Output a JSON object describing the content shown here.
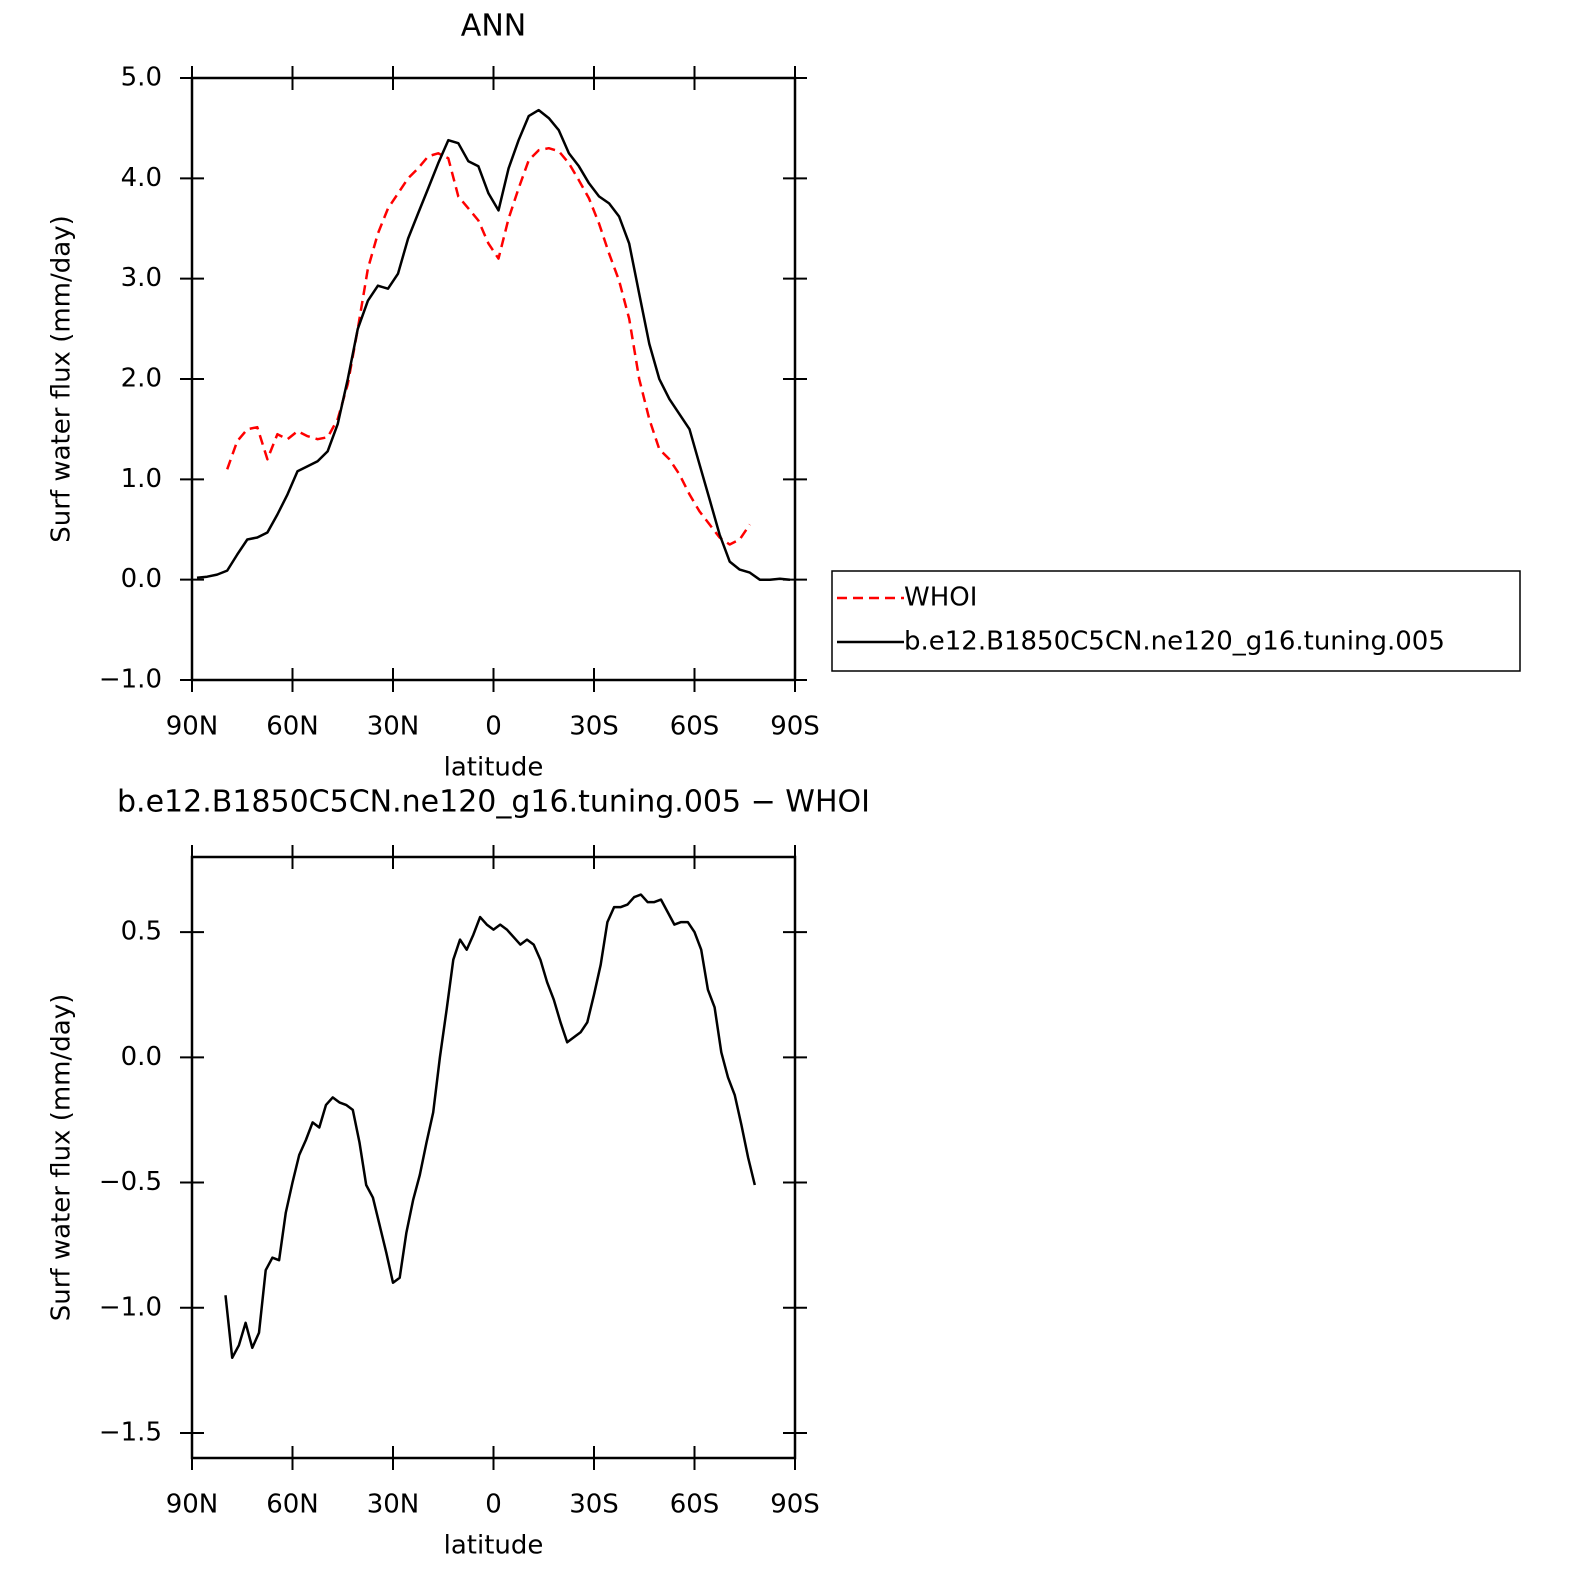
{
  "chart_data": [
    {
      "type": "line",
      "title": "ANN",
      "xlabel": "latitude",
      "ylabel": "Surf water flux (mm/day)",
      "xlim": [
        90,
        -90
      ],
      "xticks": [
        {
          "value": 90,
          "label": "90N"
        },
        {
          "value": 60,
          "label": "60N"
        },
        {
          "value": 30,
          "label": "30N"
        },
        0,
        {
          "value": -30,
          "label": "30S"
        },
        {
          "value": -60,
          "label": "60S"
        },
        {
          "value": -90,
          "label": "90S"
        }
      ],
      "ylim": [
        -1,
        5
      ],
      "yticks": [
        {
          "value": -1,
          "label": "−1.0"
        },
        {
          "value": 0,
          "label": "0.0"
        },
        {
          "value": 1,
          "label": "1.0"
        },
        {
          "value": 2,
          "label": "2.0"
        },
        {
          "value": 3,
          "label": "3.0"
        },
        {
          "value": 4,
          "label": "4.0"
        },
        {
          "value": 5,
          "label": "5.0"
        }
      ],
      "legend": "right",
      "x": [
        88.5,
        85.5,
        82.5,
        79.5,
        76.5,
        73.5,
        70.5,
        67.5,
        64.5,
        61.5,
        58.5,
        55.5,
        52.5,
        49.5,
        46.5,
        43.5,
        40.5,
        37.5,
        34.5,
        31.5,
        28.5,
        25.5,
        22.5,
        19.5,
        16.5,
        13.5,
        10.5,
        7.5,
        4.5,
        1.5,
        -1.5,
        -4.5,
        -7.5,
        -10.5,
        -13.5,
        -16.5,
        -19.5,
        -22.5,
        -25.5,
        -28.5,
        -31.5,
        -34.5,
        -37.5,
        -40.5,
        -43.5,
        -46.5,
        -49.5,
        -52.5,
        -55.5,
        -58.5,
        -61.5,
        -64.5,
        -67.5,
        -70.5,
        -73.5,
        -76.5,
        -79.5,
        -82.5,
        -85.5,
        -88.5
      ],
      "series": [
        {
          "name": "WHOI",
          "color": "#ff0000",
          "line_style": "dashed",
          "values": [
            null,
            null,
            null,
            1.1,
            1.38,
            1.5,
            1.52,
            1.2,
            1.45,
            1.4,
            1.48,
            1.43,
            1.4,
            1.42,
            1.6,
            1.95,
            2.5,
            3.1,
            3.45,
            3.7,
            3.85,
            4.0,
            4.1,
            4.22,
            4.25,
            4.2,
            3.82,
            3.7,
            3.58,
            3.35,
            3.2,
            3.6,
            3.9,
            4.18,
            4.28,
            4.3,
            4.27,
            4.15,
            3.98,
            3.8,
            3.55,
            3.25,
            2.98,
            2.6,
            2.0,
            1.6,
            1.3,
            1.2,
            1.05,
            0.85,
            0.68,
            0.55,
            0.42,
            0.35,
            0.4,
            0.55,
            null,
            null,
            null,
            null
          ]
        },
        {
          "name": "b.e12.B1850C5CN.ne120_g16.tuning.005",
          "color": "#000000",
          "line_style": "solid",
          "values": [
            0.02,
            0.03,
            0.05,
            0.09,
            0.25,
            0.4,
            0.42,
            0.47,
            0.65,
            0.85,
            1.08,
            1.13,
            1.18,
            1.28,
            1.55,
            2.0,
            2.5,
            2.78,
            2.93,
            2.9,
            3.05,
            3.4,
            3.65,
            3.9,
            4.15,
            4.38,
            4.35,
            4.17,
            4.12,
            3.85,
            3.68,
            4.1,
            4.38,
            4.62,
            4.68,
            4.6,
            4.48,
            4.25,
            4.12,
            3.95,
            3.82,
            3.75,
            3.62,
            3.35,
            2.85,
            2.35,
            2.0,
            1.8,
            1.65,
            1.5,
            1.15,
            0.8,
            0.45,
            0.18,
            0.1,
            0.07,
            0.0,
            0.0,
            0.01,
            0.0
          ]
        }
      ]
    },
    {
      "type": "line",
      "title": "b.e12.B1850C5CN.ne120_g16.tuning.005 − WHOI",
      "xlabel": "latitude",
      "ylabel": "Surf water flux (mm/day)",
      "xlim": [
        90,
        -90
      ],
      "xticks": [
        {
          "value": 90,
          "label": "90N"
        },
        {
          "value": 60,
          "label": "60N"
        },
        {
          "value": 30,
          "label": "30N"
        },
        0,
        {
          "value": -30,
          "label": "30S"
        },
        {
          "value": -60,
          "label": "60S"
        },
        {
          "value": -90,
          "label": "90S"
        }
      ],
      "ylim": [
        -1.6,
        0.8
      ],
      "yticks": [
        {
          "value": -1.5,
          "label": "−1.5"
        },
        {
          "value": -1,
          "label": "−1.0"
        },
        {
          "value": -0.5,
          "label": "−0.5"
        },
        {
          "value": 0,
          "label": "0.0"
        },
        {
          "value": 0.5,
          "label": "0.5"
        }
      ],
      "x": [
        80,
        78,
        76,
        74,
        72,
        70,
        68,
        66,
        64,
        62,
        60,
        58,
        56,
        54,
        52,
        50,
        48,
        46,
        44,
        42,
        40,
        38,
        36,
        34,
        32,
        30,
        28,
        26,
        24,
        22,
        20,
        18,
        16,
        14,
        12,
        10,
        8,
        6,
        4,
        2,
        0,
        -2,
        -4,
        -6,
        -8,
        -10,
        -12,
        -14,
        -16,
        -18,
        -20,
        -22,
        -24,
        -26,
        -28,
        -30,
        -32,
        -34,
        -36,
        -38,
        -40,
        -42,
        -44,
        -46,
        -48,
        -50,
        -52,
        -54,
        -56,
        -58,
        -60,
        -62,
        -64,
        -66,
        -68,
        -70,
        -72,
        -74,
        -76,
        -78
      ],
      "series": [
        {
          "color": "#000000",
          "line_style": "solid",
          "values": [
            -0.95,
            -1.2,
            -1.15,
            -1.06,
            -1.16,
            -1.1,
            -0.85,
            -0.8,
            -0.81,
            -0.62,
            -0.5,
            -0.39,
            -0.33,
            -0.26,
            -0.28,
            -0.19,
            -0.16,
            -0.18,
            -0.19,
            -0.21,
            -0.34,
            -0.51,
            -0.56,
            -0.67,
            -0.78,
            -0.9,
            -0.88,
            -0.7,
            -0.57,
            -0.47,
            -0.34,
            -0.22,
            0.0,
            0.19,
            0.39,
            0.47,
            0.43,
            0.49,
            0.56,
            0.53,
            0.51,
            0.53,
            0.51,
            0.48,
            0.45,
            0.47,
            0.45,
            0.39,
            0.3,
            0.23,
            0.14,
            0.06,
            0.08,
            0.1,
            0.14,
            0.25,
            0.37,
            0.54,
            0.6,
            0.6,
            0.61,
            0.64,
            0.65,
            0.62,
            0.62,
            0.63,
            0.58,
            0.53,
            0.54,
            0.54,
            0.5,
            0.43,
            0.27,
            0.2,
            0.02,
            -0.08,
            -0.15,
            -0.27,
            -0.4,
            -0.51
          ]
        }
      ]
    }
  ]
}
